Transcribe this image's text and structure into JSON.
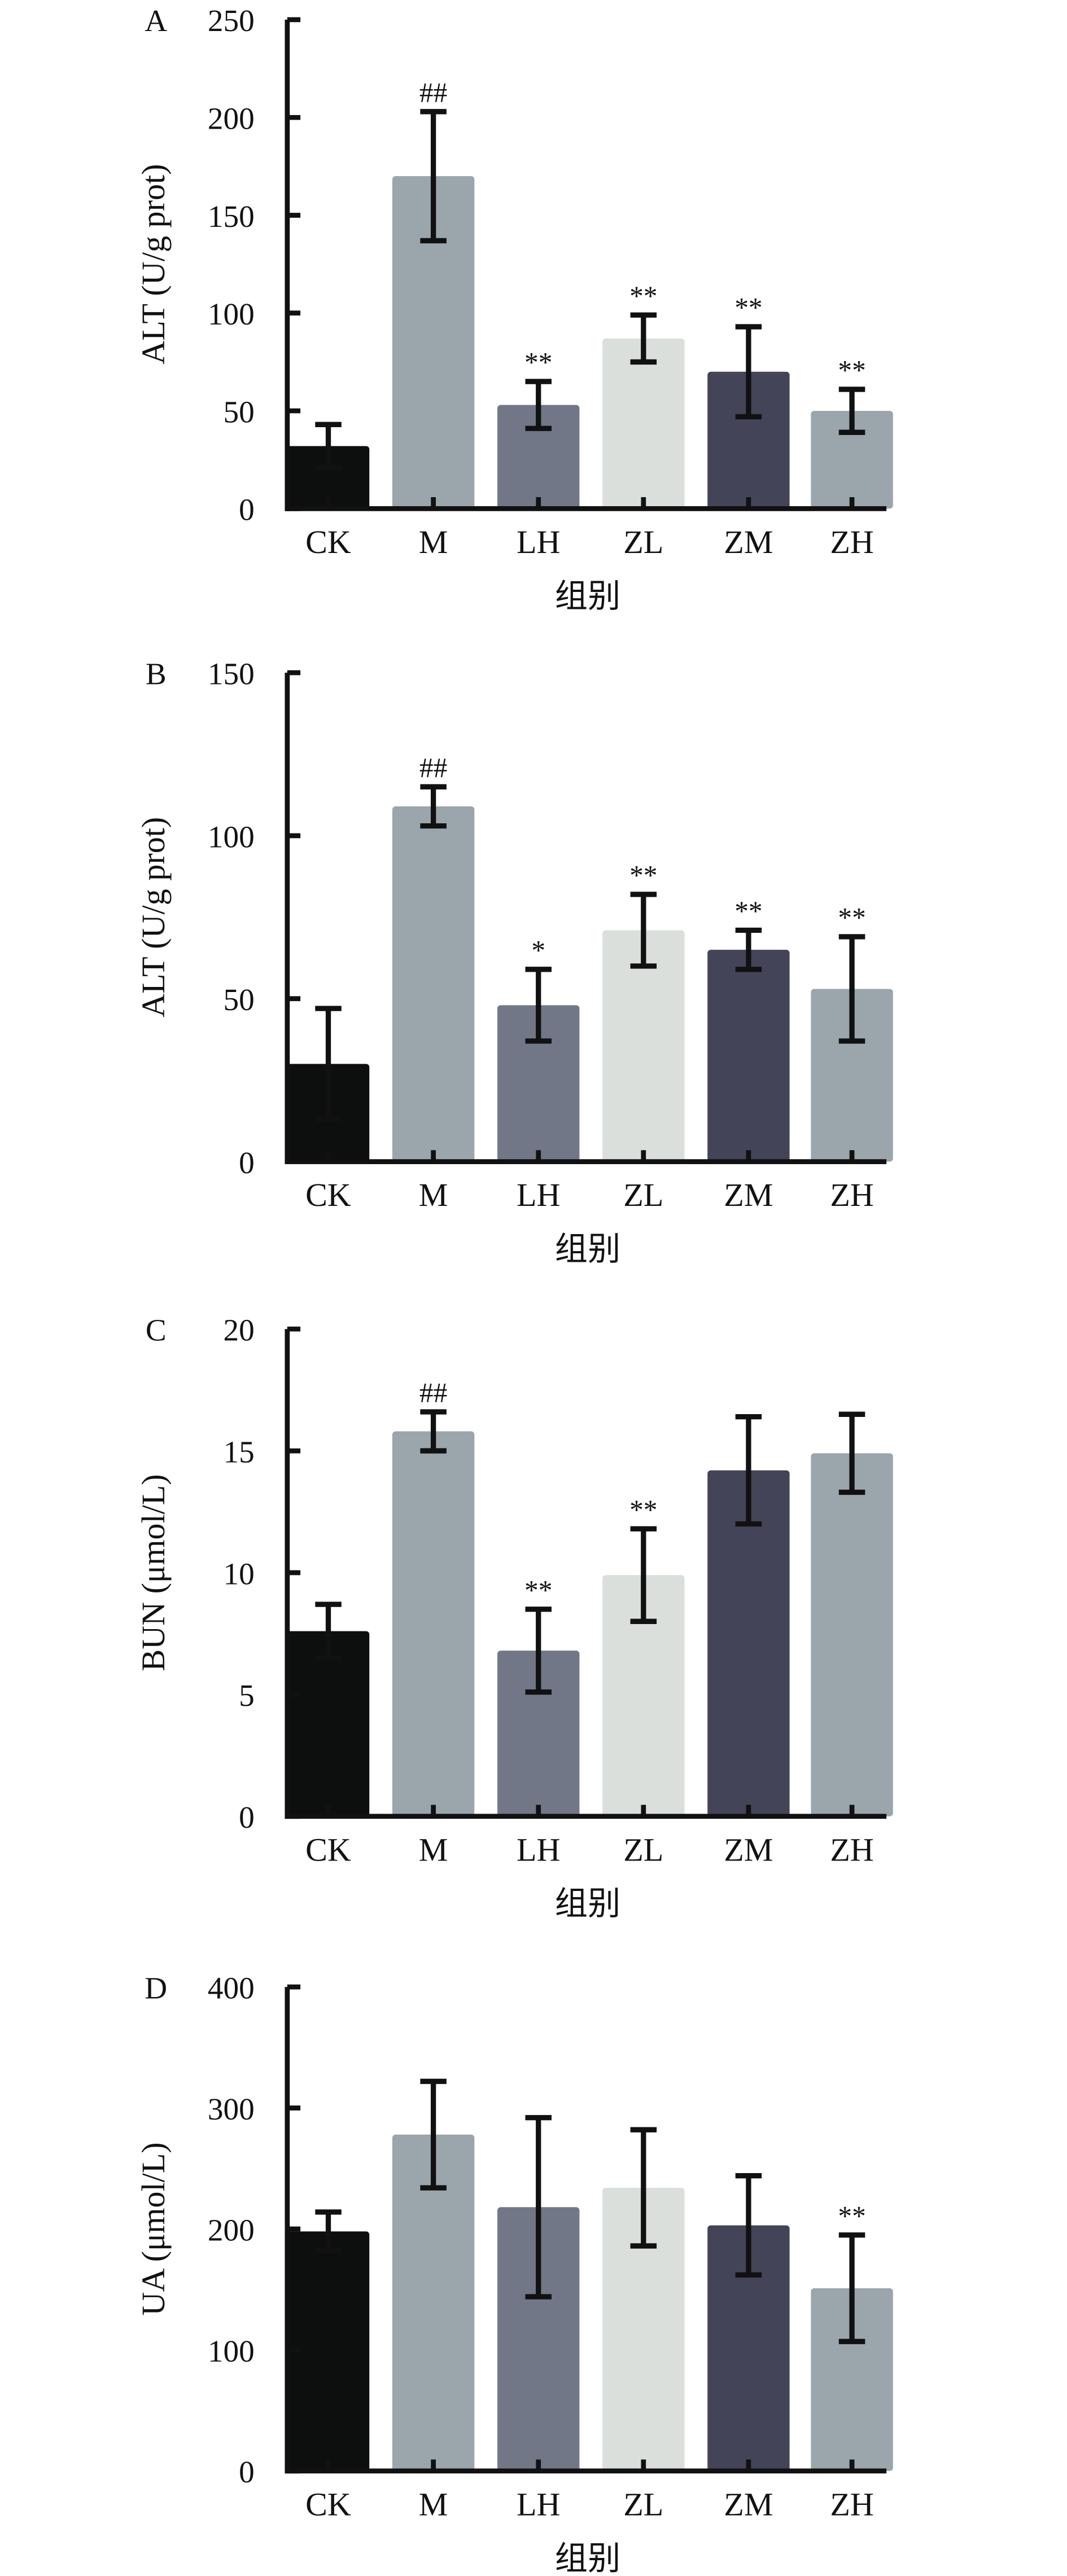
{
  "chart_data": [
    {
      "type": "bar",
      "panel": "A",
      "ylabel": "ALT (U/g prot)",
      "xlabel": "组别",
      "categories": [
        "CK",
        "M",
        "LH",
        "ZL",
        "ZM",
        "ZH"
      ],
      "values": [
        32,
        170,
        53,
        87,
        70,
        50
      ],
      "errors": [
        11,
        33,
        12,
        12,
        23,
        11
      ],
      "annotations": [
        "",
        "##",
        "**",
        "**",
        "**",
        "**"
      ],
      "ylim": [
        0,
        250
      ],
      "yticks": [
        0,
        50,
        100,
        150,
        200,
        250
      ]
    },
    {
      "type": "bar",
      "panel": "B",
      "ylabel": "ALT (U/g prot)",
      "xlabel": "组别",
      "categories": [
        "CK",
        "M",
        "LH",
        "ZL",
        "ZM",
        "ZH"
      ],
      "values": [
        30,
        109,
        48,
        71,
        65,
        53
      ],
      "errors": [
        17,
        6,
        11,
        11,
        6,
        16
      ],
      "annotations": [
        "",
        "##",
        "*",
        "**",
        "**",
        "**"
      ],
      "ylim": [
        0,
        150
      ],
      "yticks": [
        0,
        50,
        100,
        150
      ]
    },
    {
      "type": "bar",
      "panel": "C",
      "ylabel": "BUN (μmol/L)",
      "xlabel": "组别",
      "categories": [
        "CK",
        "M",
        "LH",
        "ZL",
        "ZM",
        "ZH"
      ],
      "values": [
        7.6,
        15.8,
        6.8,
        9.9,
        14.2,
        14.9
      ],
      "errors": [
        1.1,
        0.8,
        1.7,
        1.9,
        2.2,
        1.6
      ],
      "annotations": [
        "",
        "##",
        "**",
        "**",
        "",
        ""
      ],
      "ylim": [
        0,
        20
      ],
      "yticks": [
        0,
        5,
        10,
        15,
        20
      ]
    },
    {
      "type": "bar",
      "panel": "D",
      "ylabel": "UA (μmol/L)",
      "xlabel": "组别",
      "categories": [
        "CK",
        "M",
        "LH",
        "ZL",
        "ZM",
        "ZH"
      ],
      "values": [
        198,
        278,
        218,
        234,
        203,
        151
      ],
      "errors": [
        16,
        44,
        74,
        48,
        41,
        44
      ],
      "annotations": [
        "",
        "",
        "",
        "",
        "",
        "**"
      ],
      "ylim": [
        0,
        400
      ],
      "yticks": [
        0,
        100,
        200,
        300,
        400
      ]
    }
  ],
  "colors": [
    "#0d0f0e",
    "#9aa5ac",
    "#717786",
    "#dadfdc",
    "#434457",
    "#9aa5ac"
  ]
}
